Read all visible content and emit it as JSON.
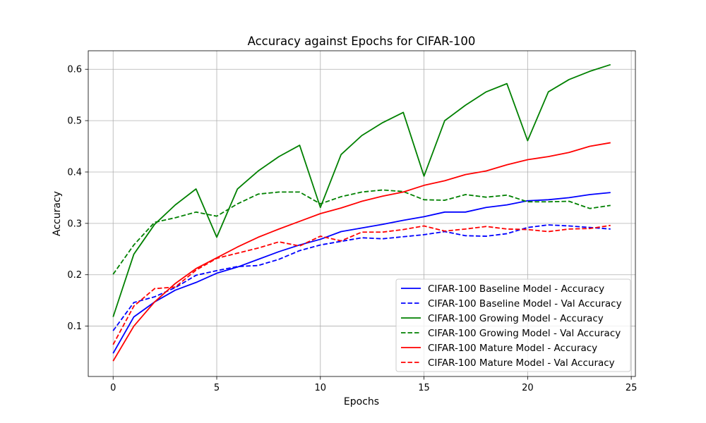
{
  "chart_data": {
    "type": "line",
    "title": "Accuracy against Epochs for CIFAR-100",
    "xlabel": "Epochs",
    "ylabel": "Accuracy",
    "xlim": [
      -1.2,
      25.2
    ],
    "ylim": [
      0.002,
      0.636
    ],
    "xticks": [
      0,
      5,
      10,
      15,
      20,
      25
    ],
    "yticks": [
      0.1,
      0.2,
      0.3,
      0.4,
      0.5,
      0.6
    ],
    "ytick_labels": [
      "0.1",
      "0.2",
      "0.3",
      "0.4",
      "0.5",
      "0.6"
    ],
    "grid": true,
    "legend_position": "lower-right",
    "x": [
      0,
      1,
      2,
      3,
      4,
      5,
      6,
      7,
      8,
      9,
      10,
      11,
      12,
      13,
      14,
      15,
      16,
      17,
      18,
      19,
      20,
      21,
      22,
      23,
      24
    ],
    "series": [
      {
        "name": "CIFAR-100 Baseline Model - Accuracy",
        "color": "#0000ff",
        "dash": "solid",
        "values": [
          0.047,
          0.118,
          0.147,
          0.17,
          0.185,
          0.203,
          0.215,
          0.23,
          0.245,
          0.258,
          0.269,
          0.284,
          0.291,
          0.298,
          0.306,
          0.313,
          0.322,
          0.322,
          0.331,
          0.336,
          0.344,
          0.346,
          0.35,
          0.356,
          0.36
        ]
      },
      {
        "name": "CIFAR-100 Baseline Model - Val Accuracy",
        "color": "#0000ff",
        "dash": "dashed",
        "values": [
          0.091,
          0.146,
          0.157,
          0.175,
          0.199,
          0.208,
          0.216,
          0.218,
          0.23,
          0.247,
          0.258,
          0.265,
          0.272,
          0.27,
          0.274,
          0.278,
          0.284,
          0.276,
          0.275,
          0.28,
          0.292,
          0.297,
          0.295,
          0.292,
          0.289
        ]
      },
      {
        "name": "CIFAR-100 Growing Model - Accuracy",
        "color": "#008000",
        "dash": "solid",
        "values": [
          0.118,
          0.24,
          0.298,
          0.336,
          0.367,
          0.273,
          0.367,
          0.402,
          0.43,
          0.452,
          0.331,
          0.434,
          0.471,
          0.496,
          0.516,
          0.392,
          0.5,
          0.53,
          0.556,
          0.572,
          0.461,
          0.556,
          0.58,
          0.596,
          0.609
        ]
      },
      {
        "name": "CIFAR-100 Growing Model - Val Accuracy",
        "color": "#008000",
        "dash": "dashed",
        "values": [
          0.201,
          0.258,
          0.302,
          0.311,
          0.322,
          0.314,
          0.338,
          0.357,
          0.361,
          0.361,
          0.338,
          0.352,
          0.361,
          0.365,
          0.362,
          0.346,
          0.345,
          0.356,
          0.351,
          0.355,
          0.342,
          0.342,
          0.343,
          0.329,
          0.335
        ]
      },
      {
        "name": "CIFAR-100 Mature Model - Accuracy",
        "color": "#ff0000",
        "dash": "solid",
        "values": [
          0.032,
          0.1,
          0.147,
          0.183,
          0.212,
          0.233,
          0.254,
          0.273,
          0.289,
          0.304,
          0.319,
          0.33,
          0.343,
          0.353,
          0.361,
          0.374,
          0.383,
          0.395,
          0.402,
          0.414,
          0.424,
          0.43,
          0.438,
          0.45,
          0.457
        ]
      },
      {
        "name": "CIFAR-100 Mature Model - Val Accuracy",
        "color": "#ff0000",
        "dash": "dashed",
        "values": [
          0.064,
          0.139,
          0.173,
          0.176,
          0.209,
          0.232,
          0.242,
          0.252,
          0.264,
          0.256,
          0.275,
          0.266,
          0.283,
          0.283,
          0.288,
          0.295,
          0.285,
          0.289,
          0.294,
          0.289,
          0.288,
          0.284,
          0.289,
          0.29,
          0.296
        ]
      }
    ]
  }
}
